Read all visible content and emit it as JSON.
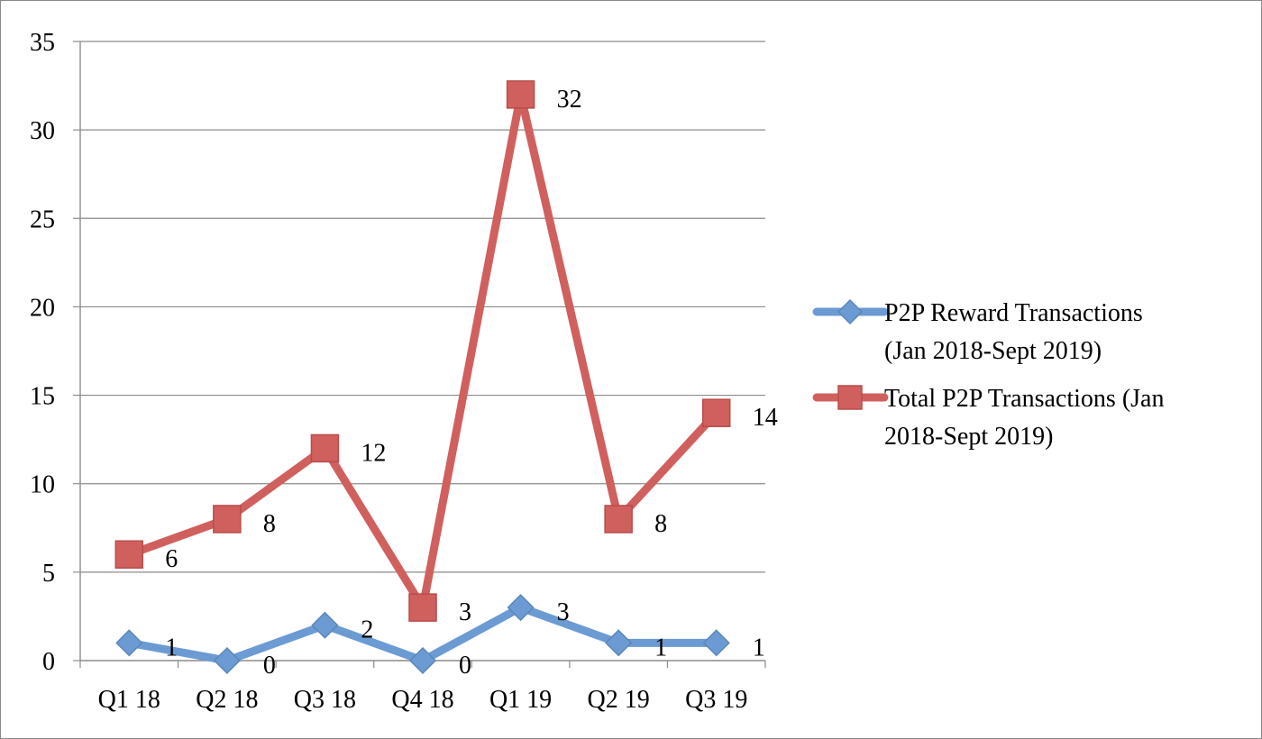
{
  "chart_data": {
    "type": "line",
    "title": "",
    "xlabel": "",
    "ylabel": "",
    "categories": [
      "Q1 18",
      "Q2 18",
      "Q3 18",
      "Q4 18",
      "Q1 19",
      "Q2 19",
      "Q3 19"
    ],
    "ylim": [
      0,
      35
    ],
    "yticks": [
      0,
      5,
      10,
      15,
      20,
      25,
      30,
      35
    ],
    "grid": "horizontal",
    "legend_position": "right",
    "series": [
      {
        "name_lines": [
          "P2P Reward Transactions",
          "(Jan 2018-Sept 2019)"
        ],
        "values": [
          1,
          0,
          2,
          0,
          3,
          1,
          1
        ],
        "color": "#6b9bd2",
        "marker": "diamond"
      },
      {
        "name_lines": [
          "Total P2P Transactions (Jan",
          "2018-Sept 2019)"
        ],
        "values": [
          6,
          8,
          12,
          3,
          32,
          8,
          14
        ],
        "color": "#d0605e",
        "marker": "square"
      }
    ]
  }
}
